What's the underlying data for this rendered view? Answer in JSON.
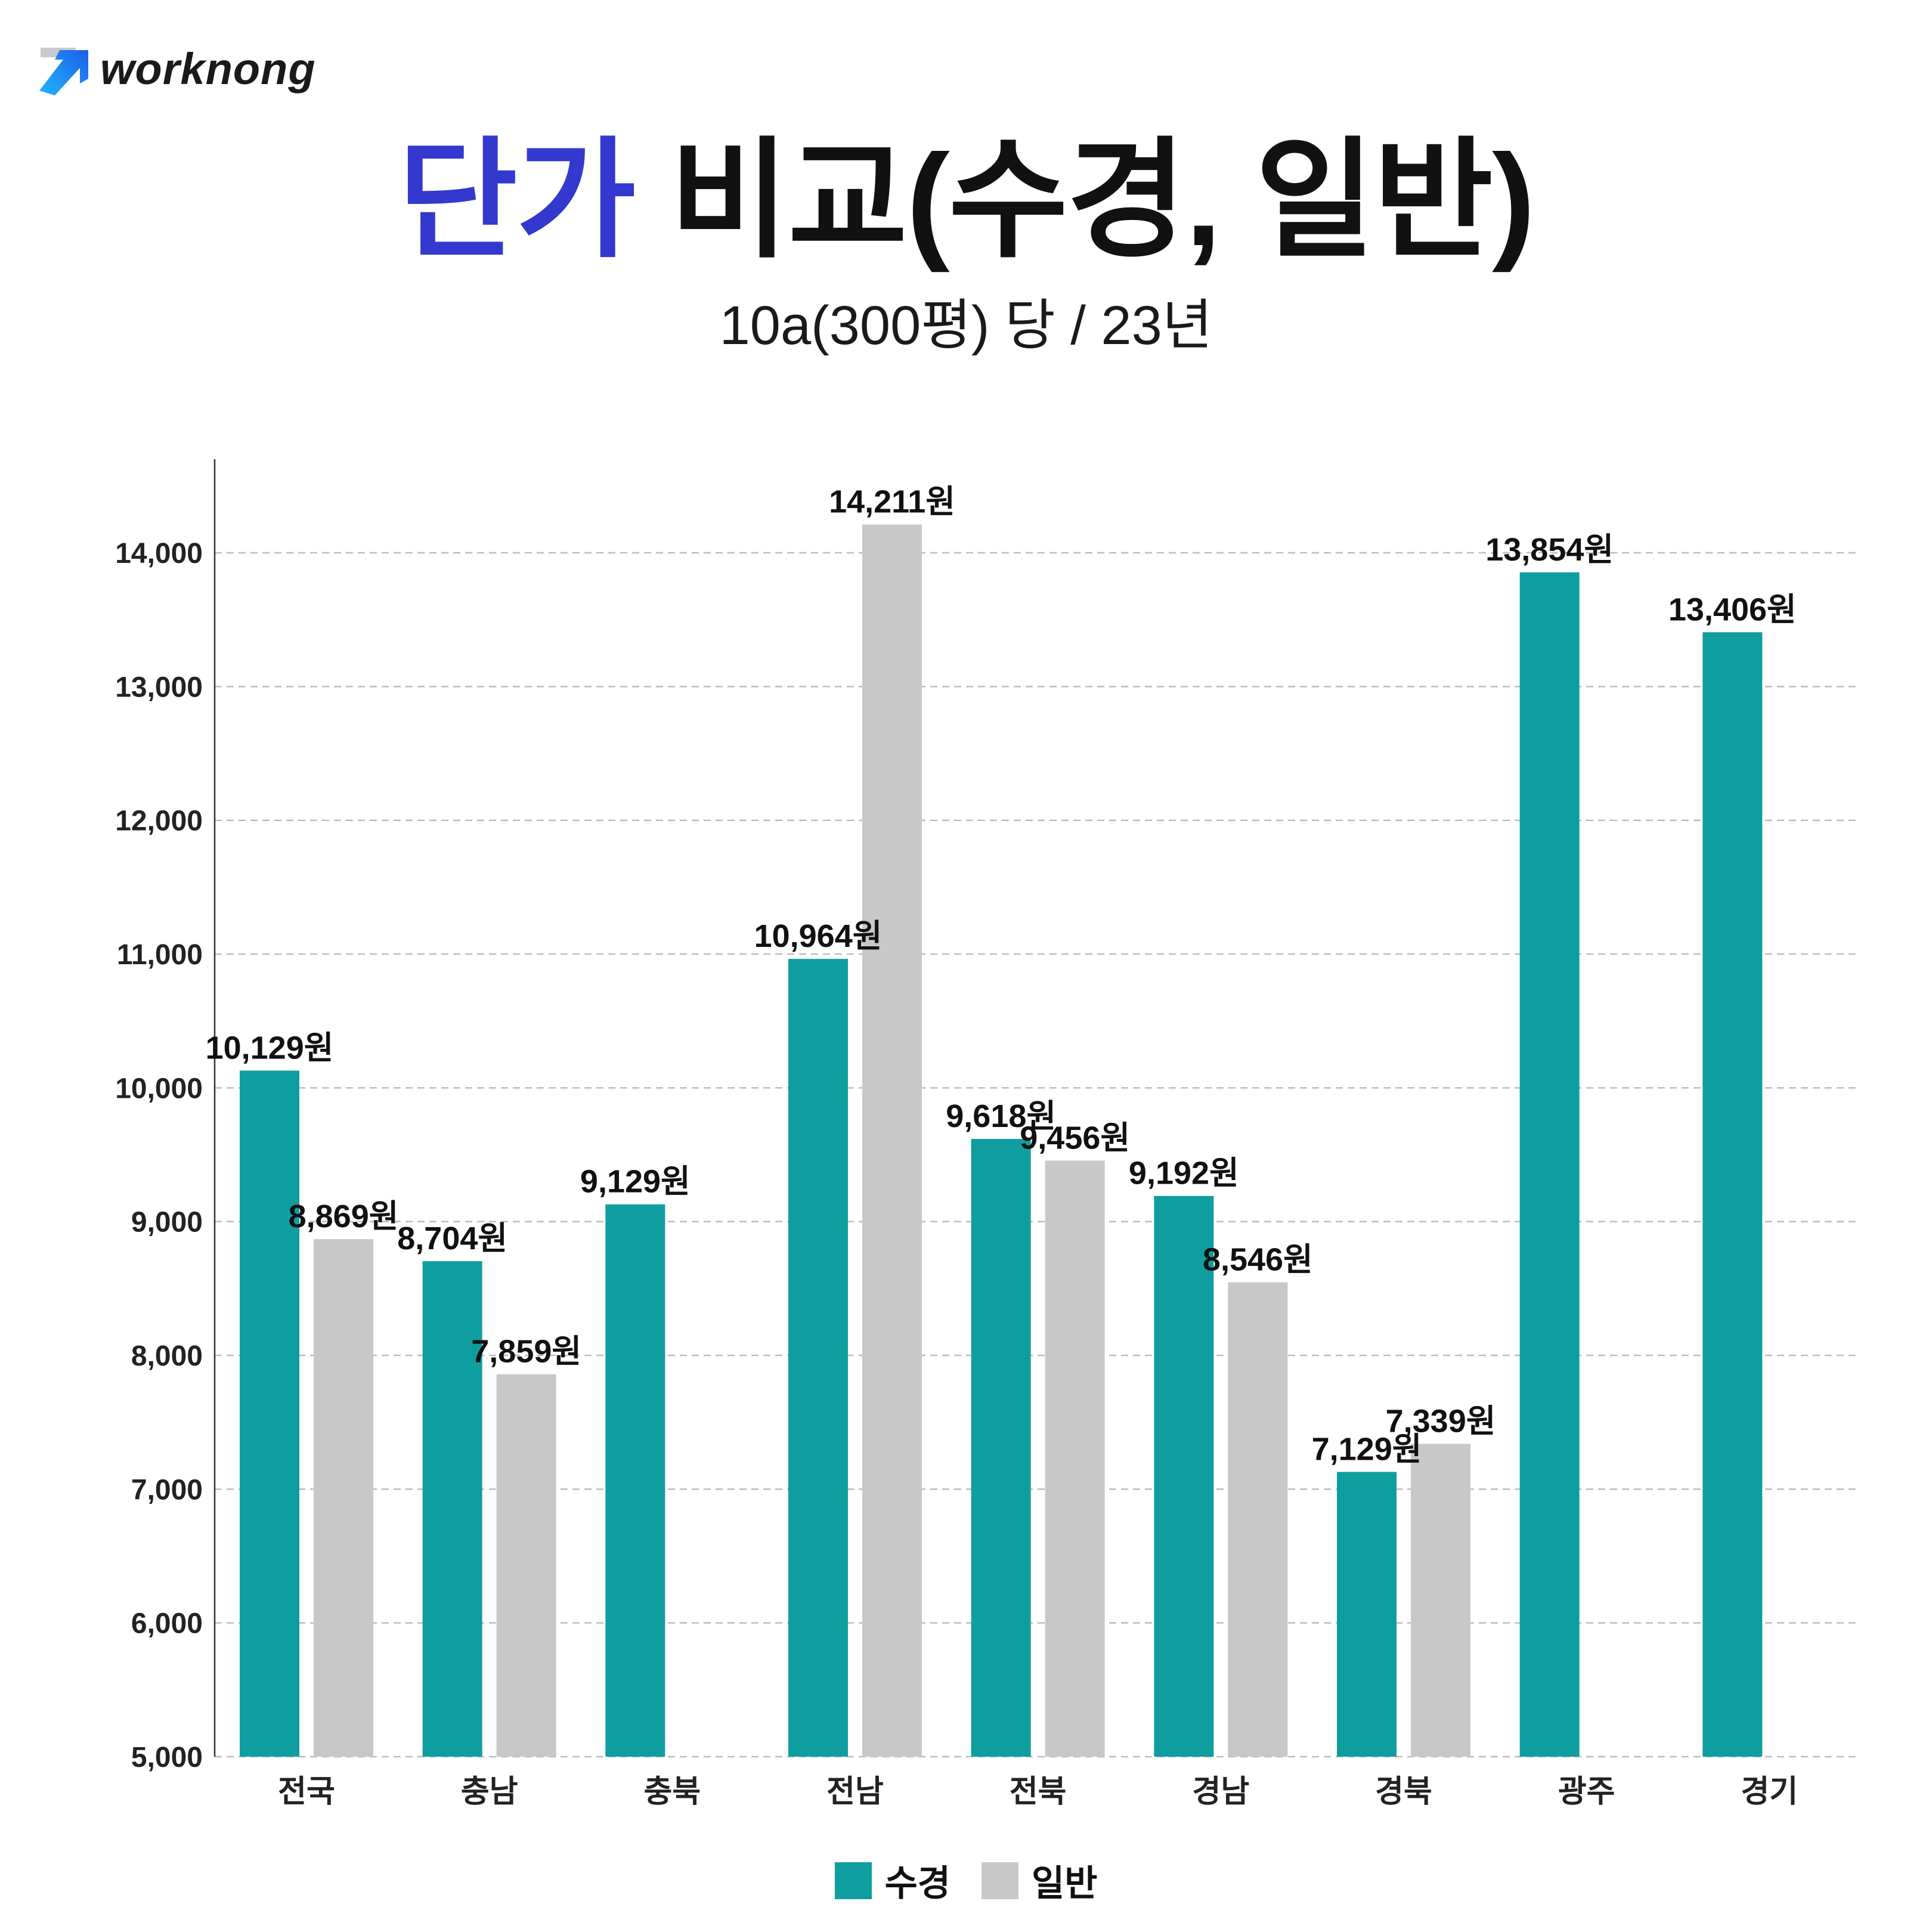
{
  "logo": {
    "text": "worknong"
  },
  "title": {
    "accent": "단가",
    "rest": " 비교(수경, 일반)"
  },
  "subtitle": "10a(300평) 당 / 23년",
  "colors": {
    "accent": "#3338cf",
    "hydroponic": "#0f9ea0",
    "general": "#c8c8c8"
  },
  "chart_data": {
    "type": "bar",
    "title": "단가 비교(수경, 일반)",
    "subtitle": "10a(300평) 당 / 23년",
    "categories": [
      "전국",
      "충남",
      "충북",
      "전남",
      "전북",
      "경남",
      "경북",
      "광주",
      "경기"
    ],
    "series": [
      {
        "name": "수경",
        "color": "#0f9ea0",
        "values": [
          10129,
          8704,
          9129,
          10964,
          9618,
          9192,
          7129,
          13854,
          13406
        ],
        "labels": [
          "10,129원",
          "8,704원",
          "9,129원",
          "10,964원",
          "9,618원",
          "9,192원",
          "7,129원",
          "13,854원",
          "13,406원"
        ]
      },
      {
        "name": "일반",
        "color": "#c8c8c8",
        "values": [
          8869,
          7859,
          null,
          14211,
          9456,
          8546,
          7339,
          null,
          null
        ],
        "labels": [
          "8,869원",
          "7,859원",
          "",
          "14,211원",
          "9,456원",
          "8,546원",
          "7,339원",
          "",
          ""
        ]
      }
    ],
    "ylim": [
      5000,
      14700
    ],
    "yticks": [
      5000,
      6000,
      7000,
      8000,
      9000,
      10000,
      11000,
      12000,
      13000,
      14000
    ],
    "ytick_labels": [
      "5,000",
      "6,000",
      "7,000",
      "8,000",
      "9,000",
      "10,000",
      "11,000",
      "12,000",
      "13,000",
      "14,000"
    ],
    "xlabel": "",
    "ylabel": "",
    "grid": true,
    "legend_position": "bottom-center"
  }
}
